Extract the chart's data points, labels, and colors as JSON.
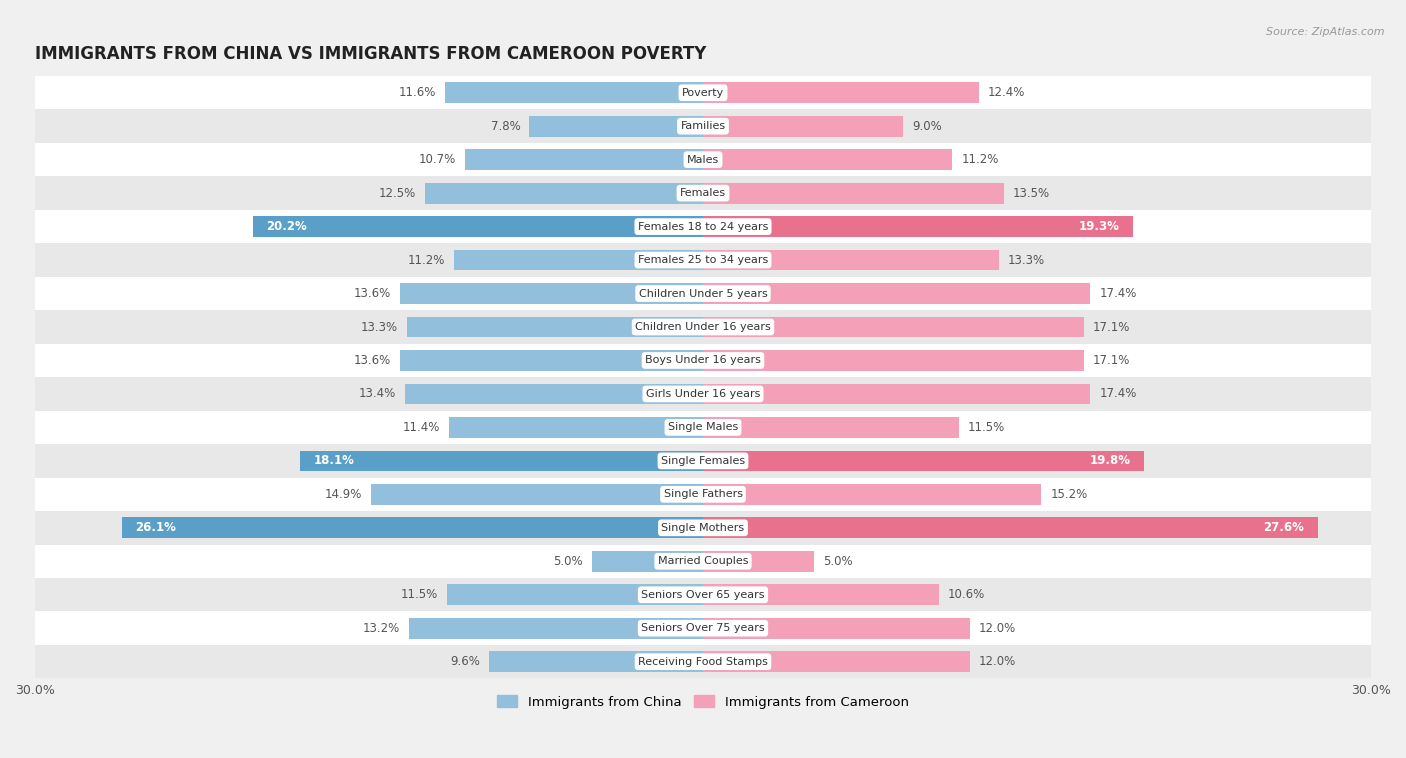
{
  "title": "IMMIGRANTS FROM CHINA VS IMMIGRANTS FROM CAMEROON POVERTY",
  "source": "Source: ZipAtlas.com",
  "categories": [
    "Poverty",
    "Families",
    "Males",
    "Females",
    "Females 18 to 24 years",
    "Females 25 to 34 years",
    "Children Under 5 years",
    "Children Under 16 years",
    "Boys Under 16 years",
    "Girls Under 16 years",
    "Single Males",
    "Single Females",
    "Single Fathers",
    "Single Mothers",
    "Married Couples",
    "Seniors Over 65 years",
    "Seniors Over 75 years",
    "Receiving Food Stamps"
  ],
  "china_values": [
    11.6,
    7.8,
    10.7,
    12.5,
    20.2,
    11.2,
    13.6,
    13.3,
    13.6,
    13.4,
    11.4,
    18.1,
    14.9,
    26.1,
    5.0,
    11.5,
    13.2,
    9.6
  ],
  "cameroon_values": [
    12.4,
    9.0,
    11.2,
    13.5,
    19.3,
    13.3,
    17.4,
    17.1,
    17.1,
    17.4,
    11.5,
    19.8,
    15.2,
    27.6,
    5.0,
    10.6,
    12.0,
    12.0
  ],
  "china_color": "#92c0dc",
  "cameroon_color": "#f4a0b8",
  "china_highlight_indices": [
    4,
    11,
    13
  ],
  "cameroon_highlight_indices": [
    4,
    11,
    13
  ],
  "china_highlight_color": "#5a9fc8",
  "cameroon_highlight_color": "#e8728e",
  "xlim": 30.0,
  "bar_height": 0.62,
  "background_color": "#f0f0f0",
  "row_white_color": "#ffffff",
  "row_gray_color": "#e8e8e8",
  "legend_china": "Immigrants from China",
  "legend_cameroon": "Immigrants from Cameroon",
  "value_label_color": "#555555",
  "value_label_fontsize": 8.5,
  "category_fontsize": 8.0
}
